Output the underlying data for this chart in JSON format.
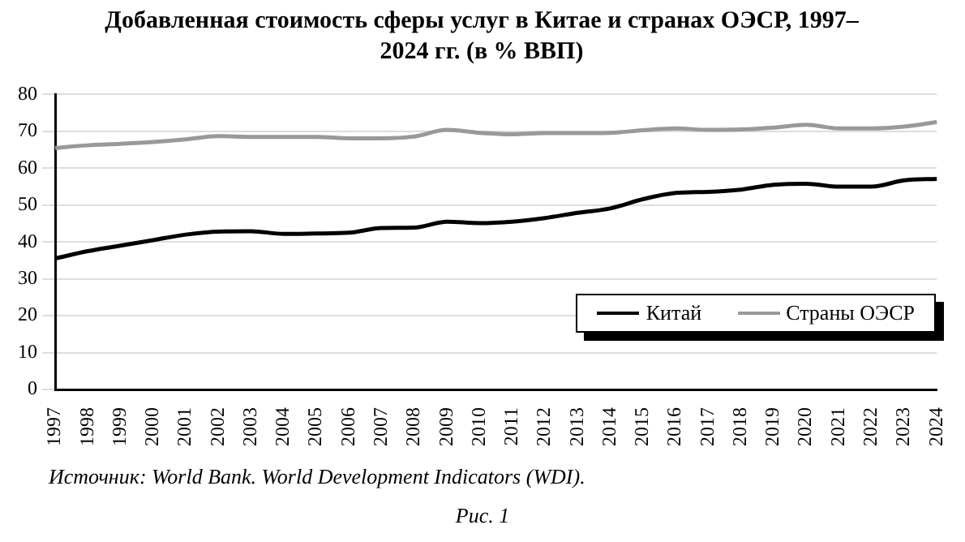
{
  "chart_data": {
    "type": "line",
    "title": "Добавленная стоимость сферы услуг в Китае и странах ОЭСР, 1997–2024 гг. (в % ВВП)",
    "categories": [
      "1997",
      "1998",
      "1999",
      "2000",
      "2001",
      "2002",
      "2003",
      "2004",
      "2005",
      "2006",
      "2007",
      "2008",
      "2009",
      "2010",
      "2011",
      "2012",
      "2013",
      "2014",
      "2015",
      "2016",
      "2017",
      "2018",
      "2019",
      "2020",
      "2021",
      "2022",
      "2023",
      "2024"
    ],
    "series": [
      {
        "name": "Китай",
        "color": "#000000",
        "values": [
          35.5,
          37.5,
          39,
          40.5,
          42,
          42.8,
          42.9,
          42.2,
          42.3,
          42.5,
          43.8,
          43.9,
          45.5,
          45.1,
          45.5,
          46.5,
          47.9,
          49.1,
          51.6,
          53.3,
          53.6,
          54.2,
          55.5,
          55.8,
          55,
          55,
          56.7,
          57.1
        ]
      },
      {
        "name": "Страны ОЭСР",
        "color": "#999999",
        "values": [
          65.5,
          66.2,
          66.6,
          67.1,
          67.8,
          68.7,
          68.5,
          68.5,
          68.5,
          68.1,
          68.1,
          68.6,
          70.4,
          69.6,
          69.2,
          69.5,
          69.5,
          69.6,
          70.3,
          70.8,
          70.4,
          70.5,
          71,
          71.8,
          70.8,
          70.8,
          71.3,
          72.5
        ]
      }
    ],
    "ylim": [
      0,
      80
    ],
    "yticks": [
      0,
      10,
      20,
      30,
      40,
      50,
      60,
      70,
      80
    ],
    "grid": "y",
    "legend": "bottom right",
    "marker": "none",
    "line_style": "solid",
    "annotations": [
      "Источник: World Bank. World Development Indicators (WDI).",
      "Рис. 1"
    ]
  }
}
